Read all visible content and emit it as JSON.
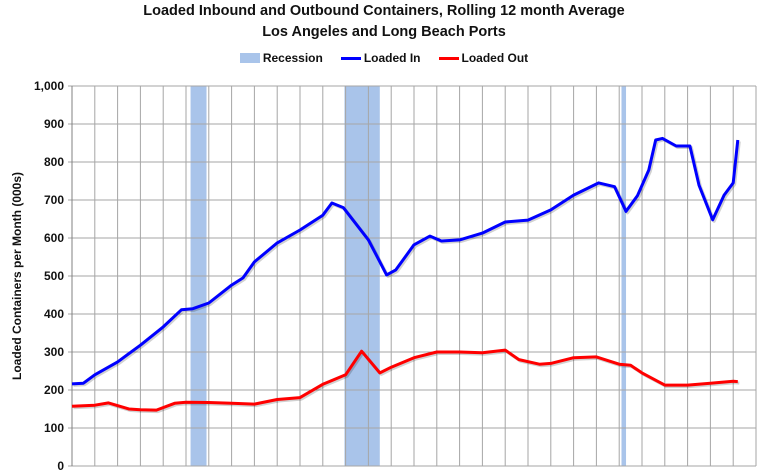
{
  "chart_data": {
    "type": "line",
    "title": "Loaded Inbound and Outbound Containers, Rolling 12 month Average",
    "subtitle": "Los Angeles and Long Beach Ports",
    "ylabel": "Loaded Containers per Month (000s)",
    "xlabel": "",
    "ylim": [
      0,
      1000
    ],
    "xlim": [
      1996,
      2026
    ],
    "yticks": [
      "0",
      "100",
      "200",
      "300",
      "400",
      "500",
      "600",
      "700",
      "800",
      "900",
      "1,000"
    ],
    "grid": true,
    "legend_position": "top",
    "legend": [
      "Recession",
      "Loaded In",
      "Loaded Out"
    ],
    "recessions": [
      [
        2001.2,
        2001.9
      ],
      [
        2007.95,
        2009.5
      ],
      [
        2020.1,
        2020.3
      ]
    ],
    "recession_color": "#a9c4ea",
    "series": [
      {
        "name": "Loaded In",
        "color": "#0000ff",
        "x": [
          1996.0,
          1996.5,
          1997.0,
          1998.0,
          1999.0,
          2000.0,
          2000.8,
          2001.3,
          2002.0,
          2003.0,
          2003.5,
          2004.0,
          2005.0,
          2006.0,
          2007.0,
          2007.4,
          2007.9,
          2009.0,
          2009.8,
          2010.2,
          2011.0,
          2011.7,
          2012.2,
          2013.0,
          2014.0,
          2015.0,
          2016.0,
          2017.0,
          2018.0,
          2019.1,
          2019.8,
          2020.3,
          2020.8,
          2021.3,
          2021.6,
          2021.9,
          2022.5,
          2023.1,
          2023.5,
          2024.1,
          2024.6,
          2025.0,
          2025.2
        ],
        "y": [
          216,
          218,
          240,
          274,
          318,
          366,
          411,
          414,
          429,
          476,
          495,
          537,
          587,
          621,
          660,
          692,
          680,
          595,
          503,
          516,
          582,
          605,
          592,
          595,
          613,
          642,
          647,
          674,
          713,
          745,
          735,
          670,
          711,
          779,
          858,
          862,
          842,
          842,
          739,
          648,
          713,
          745,
          858
        ]
      },
      {
        "name": "Loaded Out",
        "color": "#ff0000",
        "x": [
          1996.0,
          1997.0,
          1997.6,
          1998.5,
          1999.0,
          1999.7,
          2000.5,
          2001.0,
          2002.0,
          2003.0,
          2004.0,
          2005.0,
          2006.0,
          2007.0,
          2008.0,
          2008.7,
          2009.5,
          2010.0,
          2011.0,
          2012.0,
          2013.0,
          2014.0,
          2015.0,
          2015.6,
          2016.5,
          2017.0,
          2018.0,
          2019.0,
          2020.0,
          2020.5,
          2021.0,
          2022.0,
          2023.0,
          2024.0,
          2025.0,
          2025.2
        ],
        "y": [
          157,
          160,
          166,
          150,
          148,
          147,
          165,
          168,
          167,
          165,
          163,
          175,
          180,
          215,
          240,
          302,
          245,
          260,
          285,
          300,
          300,
          298,
          305,
          280,
          268,
          270,
          285,
          287,
          268,
          265,
          245,
          213,
          213,
          218,
          223,
          222
        ]
      }
    ]
  }
}
